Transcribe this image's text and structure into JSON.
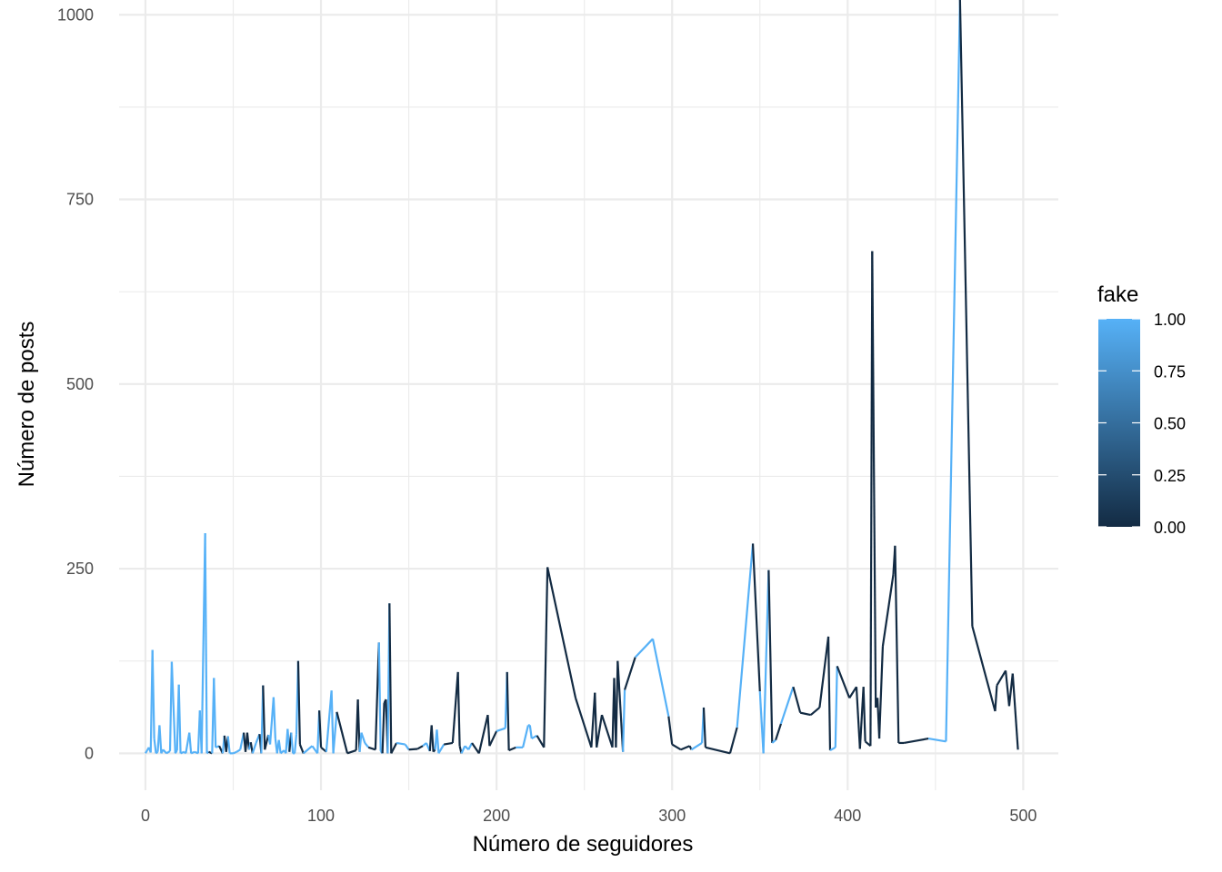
{
  "chart_data": {
    "type": "line",
    "title": "",
    "xlabel": "Número de seguidores",
    "ylabel": "Número de posts",
    "xlim": [
      -15,
      520
    ],
    "ylim": [
      -50,
      1020
    ],
    "x_ticks": [
      0,
      100,
      200,
      300,
      400,
      500
    ],
    "x_tick_labels": [
      "0",
      "100",
      "200",
      "300",
      "400",
      "500"
    ],
    "y_ticks": [
      0,
      250,
      500,
      750,
      1000
    ],
    "y_tick_labels": [
      "0",
      "250",
      "500",
      "750",
      "1000"
    ],
    "grid": true,
    "legend": {
      "title": "fake",
      "placement": "right",
      "type": "colorbar",
      "ticks": [
        "0.00",
        "0.25",
        "0.50",
        "0.75",
        "1.00"
      ],
      "low_color": "#132B43",
      "high_color": "#56B1F7"
    },
    "color_mapping": "fake",
    "points": [
      [
        0,
        0,
        1
      ],
      [
        1,
        4,
        1
      ],
      [
        2,
        8,
        1
      ],
      [
        3,
        1,
        1
      ],
      [
        4,
        140,
        1
      ],
      [
        5,
        20,
        1
      ],
      [
        6,
        0,
        1
      ],
      [
        7,
        2,
        1
      ],
      [
        8,
        38,
        1
      ],
      [
        9,
        0,
        1
      ],
      [
        10,
        5,
        1
      ],
      [
        12,
        0,
        1
      ],
      [
        14,
        3,
        1
      ],
      [
        15,
        124,
        1
      ],
      [
        17,
        0,
        1
      ],
      [
        18,
        4,
        1
      ],
      [
        19,
        93,
        1
      ],
      [
        20,
        0,
        1
      ],
      [
        22,
        2,
        1
      ],
      [
        23,
        0,
        1
      ],
      [
        25,
        28,
        1
      ],
      [
        26,
        0,
        1
      ],
      [
        28,
        2,
        1
      ],
      [
        30,
        0,
        1
      ],
      [
        31,
        58,
        1
      ],
      [
        32,
        0,
        1
      ],
      [
        34,
        298,
        1
      ],
      [
        35,
        0,
        1
      ],
      [
        36,
        2,
        0
      ],
      [
        38,
        0,
        1
      ],
      [
        39,
        102,
        1
      ],
      [
        40,
        8,
        1
      ],
      [
        42,
        10,
        0
      ],
      [
        44,
        0,
        1
      ],
      [
        45,
        24,
        0
      ],
      [
        46,
        2,
        0
      ],
      [
        47,
        23,
        1
      ],
      [
        48,
        0,
        1
      ],
      [
        50,
        0,
        1
      ],
      [
        52,
        2,
        1
      ],
      [
        54,
        5,
        1
      ],
      [
        56,
        28,
        0
      ],
      [
        57,
        2,
        0
      ],
      [
        58,
        28,
        0
      ],
      [
        59,
        5,
        1
      ],
      [
        60,
        15,
        0
      ],
      [
        61,
        0,
        1
      ],
      [
        63,
        14,
        1
      ],
      [
        65,
        26,
        0
      ],
      [
        66,
        0,
        1
      ],
      [
        67,
        92,
        0
      ],
      [
        68,
        5,
        0
      ],
      [
        70,
        25,
        1
      ],
      [
        71,
        12,
        1
      ],
      [
        73,
        76,
        1
      ],
      [
        74,
        20,
        1
      ],
      [
        75,
        0,
        1
      ],
      [
        76,
        18,
        1
      ],
      [
        77,
        0,
        1
      ],
      [
        79,
        4,
        1
      ],
      [
        80,
        0,
        1
      ],
      [
        81,
        33,
        1
      ],
      [
        82,
        2,
        0
      ],
      [
        83,
        28,
        1
      ],
      [
        84,
        0,
        1
      ],
      [
        85,
        0,
        1
      ],
      [
        86,
        26,
        1
      ],
      [
        87,
        125,
        0
      ],
      [
        88,
        12,
        0
      ],
      [
        90,
        0,
        1
      ],
      [
        95,
        10,
        1
      ],
      [
        98,
        0,
        1
      ],
      [
        99,
        58,
        0
      ],
      [
        100,
        8,
        0
      ],
      [
        103,
        2,
        1
      ],
      [
        106,
        85,
        1
      ],
      [
        107,
        0,
        1
      ],
      [
        109,
        56,
        0
      ],
      [
        115,
        0,
        0
      ],
      [
        120,
        4,
        0
      ],
      [
        121,
        73,
        0
      ],
      [
        122,
        2,
        1
      ],
      [
        123,
        28,
        1
      ],
      [
        125,
        14,
        1
      ],
      [
        127,
        8,
        0
      ],
      [
        131,
        5,
        0
      ],
      [
        133,
        150,
        1
      ],
      [
        134,
        3,
        1
      ],
      [
        135,
        0,
        0
      ],
      [
        136,
        68,
        0
      ],
      [
        137,
        73,
        0
      ],
      [
        138,
        0,
        1
      ],
      [
        139,
        203,
        0
      ],
      [
        140,
        0,
        0
      ],
      [
        143,
        14,
        1
      ],
      [
        148,
        12,
        1
      ],
      [
        150,
        5,
        0
      ],
      [
        155,
        6,
        0
      ],
      [
        158,
        10,
        1
      ],
      [
        160,
        14,
        1
      ],
      [
        162,
        3,
        0
      ],
      [
        163,
        38,
        0
      ],
      [
        164,
        2,
        0
      ],
      [
        165,
        5,
        1
      ],
      [
        166,
        32,
        1
      ],
      [
        167,
        0,
        1
      ],
      [
        170,
        12,
        0
      ],
      [
        175,
        14,
        0
      ],
      [
        178,
        110,
        0
      ],
      [
        179,
        10,
        0
      ],
      [
        180,
        0,
        1
      ],
      [
        182,
        10,
        1
      ],
      [
        184,
        5,
        1
      ],
      [
        186,
        14,
        0
      ],
      [
        190,
        0,
        0
      ],
      [
        195,
        52,
        0
      ],
      [
        196,
        10,
        0
      ],
      [
        200,
        30,
        1
      ],
      [
        205,
        34,
        1
      ],
      [
        206,
        110,
        0
      ],
      [
        207,
        4,
        0
      ],
      [
        211,
        8,
        1
      ],
      [
        215,
        8,
        1
      ],
      [
        218,
        38,
        1
      ],
      [
        219,
        38,
        1
      ],
      [
        220,
        20,
        1
      ],
      [
        223,
        24,
        0
      ],
      [
        227,
        8,
        0
      ],
      [
        229,
        252,
        0
      ],
      [
        245,
        75,
        0
      ],
      [
        254,
        8,
        0
      ],
      [
        256,
        82,
        0
      ],
      [
        257,
        8,
        0
      ],
      [
        260,
        52,
        0
      ],
      [
        266,
        8,
        0
      ],
      [
        267,
        102,
        0
      ],
      [
        268,
        8,
        0
      ],
      [
        269,
        125,
        0
      ],
      [
        272,
        2,
        1
      ],
      [
        273,
        86,
        0
      ],
      [
        279,
        130,
        1
      ],
      [
        289,
        155,
        1
      ],
      [
        298,
        50,
        0
      ],
      [
        300,
        12,
        0
      ],
      [
        305,
        5,
        0
      ],
      [
        310,
        10,
        0
      ],
      [
        311,
        5,
        1
      ],
      [
        317,
        14,
        1
      ],
      [
        318,
        62,
        0
      ],
      [
        319,
        8,
        0
      ],
      [
        333,
        0,
        0
      ],
      [
        337,
        35,
        1
      ],
      [
        346,
        284,
        0
      ],
      [
        350,
        84,
        1
      ],
      [
        352,
        0,
        1
      ],
      [
        355,
        248,
        0
      ],
      [
        357,
        14,
        1
      ],
      [
        359,
        18,
        0
      ],
      [
        362,
        40,
        1
      ],
      [
        369,
        90,
        0
      ],
      [
        373,
        55,
        0
      ],
      [
        379,
        52,
        0
      ],
      [
        384,
        62,
        0
      ],
      [
        389,
        158,
        0
      ],
      [
        390,
        4,
        1
      ],
      [
        393,
        8,
        1
      ],
      [
        394,
        118,
        0
      ],
      [
        401,
        75,
        0
      ],
      [
        405,
        90,
        0
      ],
      [
        407,
        6,
        0
      ],
      [
        409,
        90,
        0
      ],
      [
        410,
        16,
        0
      ],
      [
        413,
        10,
        0
      ],
      [
        414,
        680,
        0
      ],
      [
        416,
        62,
        0
      ],
      [
        417,
        75,
        0
      ],
      [
        418,
        20,
        0
      ],
      [
        420,
        145,
        0
      ],
      [
        426,
        242,
        0
      ],
      [
        427,
        281,
        0
      ],
      [
        429,
        14,
        0
      ],
      [
        432,
        14,
        0
      ],
      [
        446,
        20,
        1
      ],
      [
        456,
        16,
        1
      ],
      [
        464,
        1020,
        0
      ],
      [
        471,
        172,
        0
      ],
      [
        484,
        57,
        0
      ],
      [
        485,
        92,
        0
      ],
      [
        490,
        112,
        0
      ],
      [
        492,
        64,
        0
      ],
      [
        494,
        108,
        0
      ],
      [
        497,
        5,
        0
      ]
    ]
  }
}
